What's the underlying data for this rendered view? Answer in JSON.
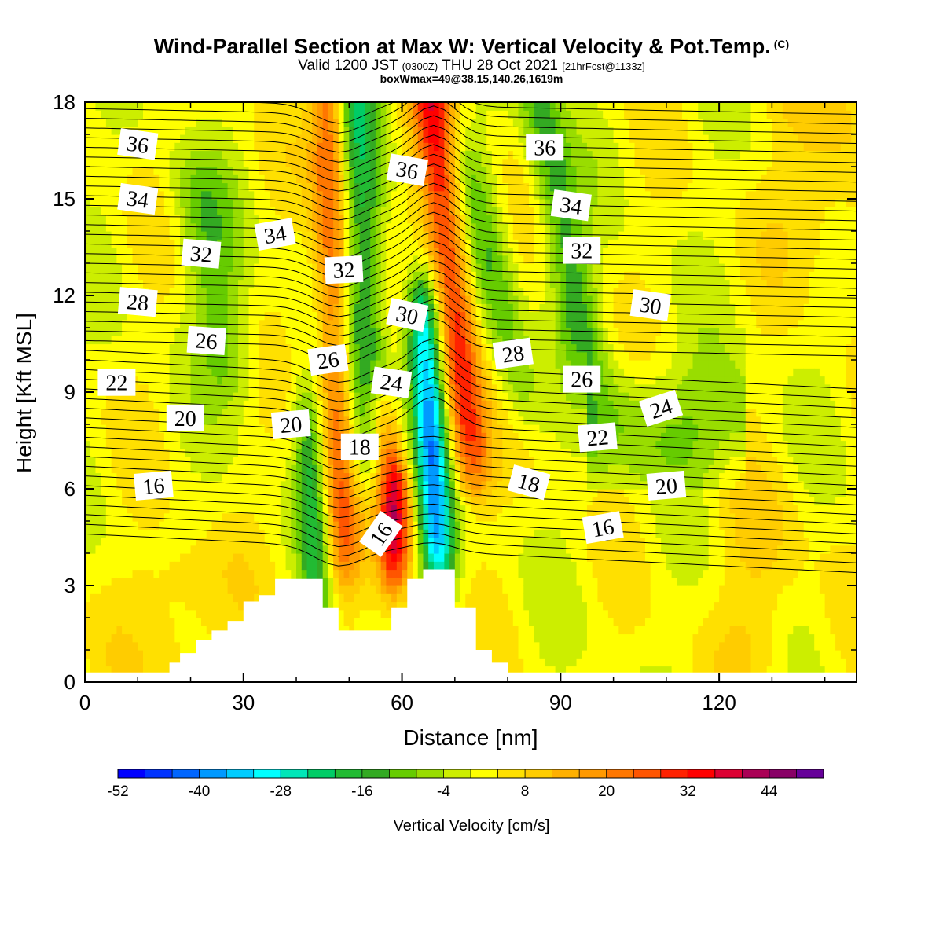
{
  "header": {
    "title": "Wind-Parallel Section at Max W: Vertical Velocity & Pot.Temp.",
    "title_mark": "(C)",
    "valid_prefix": "Valid 1200 JST",
    "valid_utc": "(0300Z)",
    "valid_date": "THU 28 Oct 2021",
    "valid_fcst": "[21hrFcst@1133z]",
    "box_info": "boxWmax=49@38.15,140.26,1619m"
  },
  "chart_data": {
    "type": "heatmap",
    "xlabel": "Distance [nm]",
    "ylabel": "Height [Kft MSL]",
    "xlim": [
      0,
      146
    ],
    "ylim": [
      0,
      18
    ],
    "x_ticks": [
      0,
      30,
      60,
      90,
      120
    ],
    "y_ticks": [
      0,
      3,
      6,
      9,
      12,
      15,
      18
    ],
    "colorbar": {
      "title": "Vertical Velocity [cm/s]",
      "tick_labels": [
        "-52",
        "-40",
        "-28",
        "-16",
        "-4",
        "8",
        "20",
        "32",
        "44"
      ],
      "levels": [
        -52,
        -48,
        -44,
        -40,
        -36,
        -32,
        -28,
        -24,
        -20,
        -16,
        -12,
        -8,
        -4,
        0,
        4,
        8,
        12,
        16,
        20,
        24,
        28,
        32,
        36,
        40,
        44,
        48
      ],
      "colors": [
        "#0000ff",
        "#0033ff",
        "#0066ff",
        "#0099ff",
        "#00ccff",
        "#00ffff",
        "#00e6b8",
        "#00cc66",
        "#22bb33",
        "#33aa22",
        "#66cc00",
        "#99dd00",
        "#ccee00",
        "#ffff00",
        "#ffe000",
        "#ffcc00",
        "#ffb000",
        "#ff9900",
        "#ff7700",
        "#ff5500",
        "#ff2200",
        "#ff0000",
        "#dd0033",
        "#aa0055",
        "#880066",
        "#660099"
      ]
    },
    "terrain": {
      "x": [
        0,
        16,
        16,
        18,
        18,
        21,
        21,
        24,
        24,
        27,
        27,
        30,
        30,
        33,
        33,
        36,
        36,
        45,
        45,
        48,
        48,
        58,
        58,
        61,
        61,
        64,
        64,
        70,
        70,
        74,
        74,
        77,
        77,
        80,
        80,
        84,
        84,
        146
      ],
      "y": [
        0.3,
        0.3,
        0.6,
        0.6,
        0.9,
        0.9,
        1.3,
        1.3,
        1.6,
        1.6,
        1.9,
        1.9,
        2.5,
        2.5,
        2.7,
        2.7,
        3.2,
        3.2,
        2.3,
        2.3,
        1.6,
        1.6,
        2.3,
        2.3,
        3.2,
        3.2,
        3.5,
        3.5,
        2.3,
        2.3,
        1.0,
        1.0,
        0.6,
        0.6,
        0.3,
        0.3,
        0.3,
        0.3
      ]
    },
    "contour_labels": [
      {
        "value": "36",
        "x": 10,
        "y": 16.7,
        "angle": 8
      },
      {
        "value": "36",
        "x": 61,
        "y": 15.9,
        "angle": 10
      },
      {
        "value": "36",
        "x": 87,
        "y": 16.6,
        "angle": 0
      },
      {
        "value": "34",
        "x": 10,
        "y": 15.0,
        "angle": 8
      },
      {
        "value": "34",
        "x": 36,
        "y": 13.9,
        "angle": -10
      },
      {
        "value": "34",
        "x": 92,
        "y": 14.8,
        "angle": 8
      },
      {
        "value": "32",
        "x": 22,
        "y": 13.3,
        "angle": 5
      },
      {
        "value": "32",
        "x": 49,
        "y": 12.8,
        "angle": -3
      },
      {
        "value": "32",
        "x": 94,
        "y": 13.4,
        "angle": 0
      },
      {
        "value": "30",
        "x": 61,
        "y": 11.4,
        "angle": 12
      },
      {
        "value": "30",
        "x": 107,
        "y": 11.7,
        "angle": 8
      },
      {
        "value": "28",
        "x": 10,
        "y": 11.8,
        "angle": 5
      },
      {
        "value": "28",
        "x": 81,
        "y": 10.2,
        "angle": -8
      },
      {
        "value": "26",
        "x": 23,
        "y": 10.6,
        "angle": 4
      },
      {
        "value": "26",
        "x": 46,
        "y": 10.0,
        "angle": -8
      },
      {
        "value": "26",
        "x": 94,
        "y": 9.4,
        "angle": 0
      },
      {
        "value": "24",
        "x": 58,
        "y": 9.3,
        "angle": 8
      },
      {
        "value": "24",
        "x": 109,
        "y": 8.5,
        "angle": -18
      },
      {
        "value": "22",
        "x": 6,
        "y": 9.3,
        "angle": 0
      },
      {
        "value": "22",
        "x": 97,
        "y": 7.6,
        "angle": -5
      },
      {
        "value": "20",
        "x": 19,
        "y": 8.2,
        "angle": 0
      },
      {
        "value": "20",
        "x": 39,
        "y": 8.0,
        "angle": -5
      },
      {
        "value": "20",
        "x": 110,
        "y": 6.1,
        "angle": -5
      },
      {
        "value": "18",
        "x": 52,
        "y": 7.3,
        "angle": 0
      },
      {
        "value": "18",
        "x": 84,
        "y": 6.2,
        "angle": 15
      },
      {
        "value": "16",
        "x": 13,
        "y": 6.1,
        "angle": -5
      },
      {
        "value": "16",
        "x": 56,
        "y": 4.6,
        "angle": -55
      },
      {
        "value": "16",
        "x": 98,
        "y": 4.8,
        "angle": -10
      }
    ]
  }
}
